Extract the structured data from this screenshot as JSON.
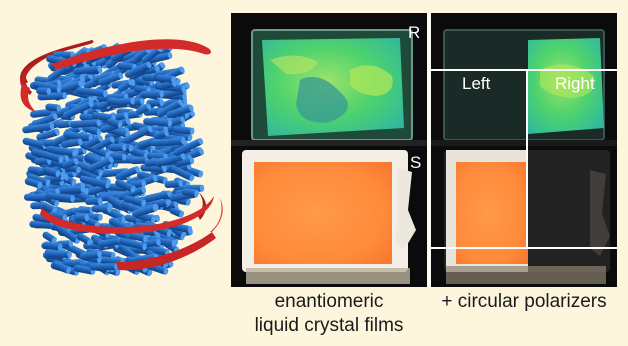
{
  "panel_labels": {
    "r": "R",
    "s": "S",
    "left": "Left",
    "right": "Right"
  },
  "captions": {
    "left_line1": "enantiomeric",
    "left_line2": "liquid crystal films",
    "right": "+ circular polarizers"
  },
  "colors": {
    "background": "#fdf6dc",
    "rods": "#1f63b8",
    "helix": "#d32a2a",
    "film_green": "#55d86a",
    "film_orange": "#ff8c3c"
  }
}
